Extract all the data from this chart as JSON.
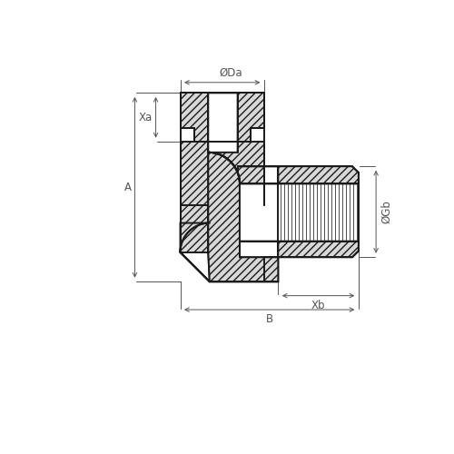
{
  "bg_color": "#ffffff",
  "line_color": "#1a1a1a",
  "dim_color": "#555555",
  "fig_size": [
    5.0,
    5.0
  ],
  "dpi": 100,
  "labels": {
    "Da": "ØDa",
    "Xa": "Xa",
    "A": "A",
    "Xb": "Xb",
    "B": "B",
    "Gb": "ØGb"
  },
  "lw_main": 1.4,
  "lw_dim": 0.7,
  "lw_thread": 0.65,
  "hatch_fc": "#d8d8d8"
}
